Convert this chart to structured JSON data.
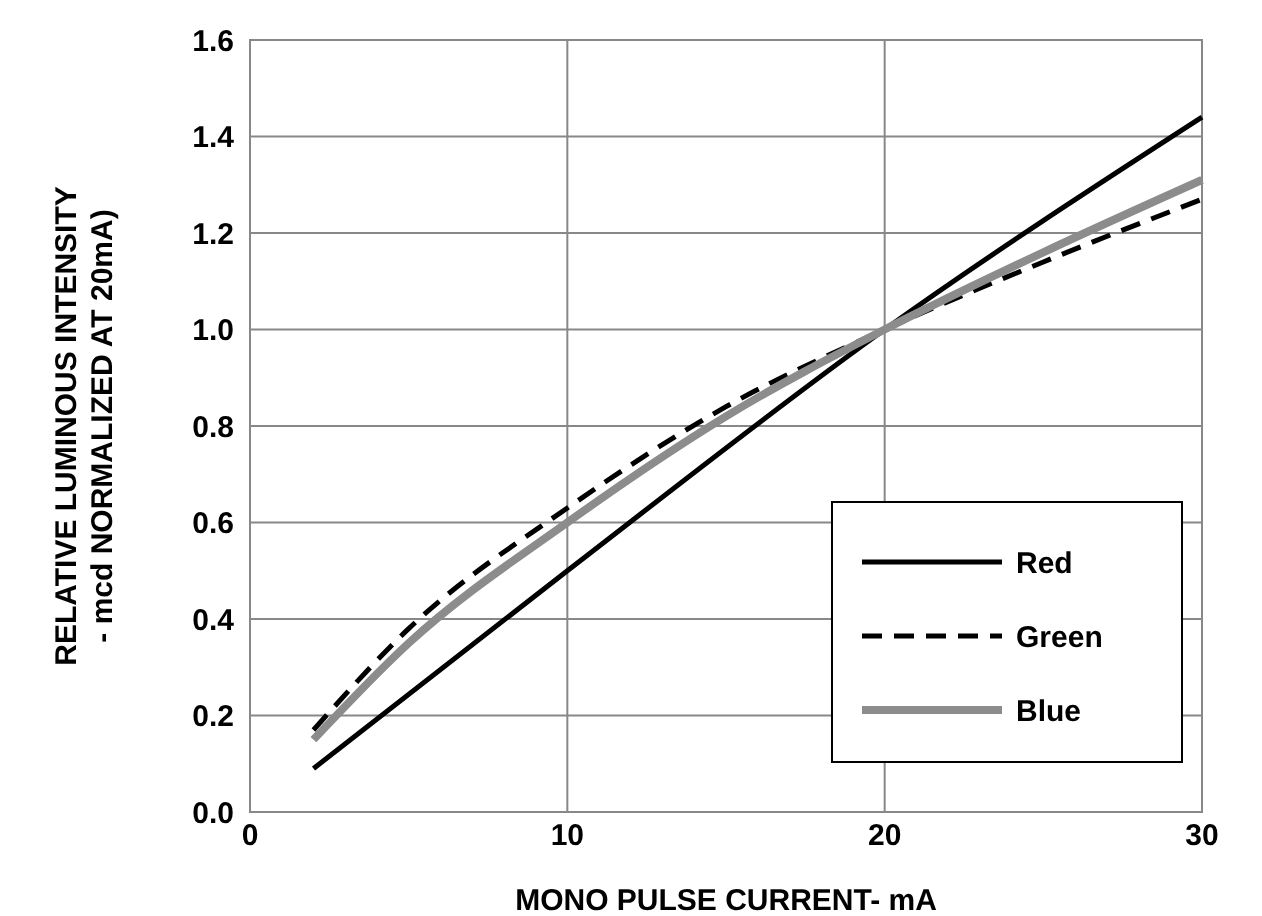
{
  "chart_data": {
    "type": "line",
    "xlabel": "MONO PULSE CURRENT- mA",
    "ylabel": "RELATIVE LUMINOUS INTENSITY\n- mcd  NORMALIZED AT 20mA)",
    "xlim": [
      0,
      30
    ],
    "xticks": [
      0,
      10,
      20,
      30
    ],
    "ylim": [
      0,
      1.6
    ],
    "yticks": [
      {
        "value": 0,
        "label": "0.0"
      },
      0.2,
      0.4,
      0.6,
      0.8,
      {
        "value": 1,
        "label": "1.0"
      },
      1.2,
      1.4,
      1.6
    ],
    "grid": true,
    "legend": "bottom right",
    "series": [
      {
        "name": "Red",
        "color": "#000000",
        "line_style": "solid",
        "x": [
          2,
          10,
          20,
          30
        ],
        "values": [
          0.09,
          0.5,
          1.0,
          1.44
        ]
      },
      {
        "name": "Green",
        "color": "#000000",
        "line_style": "dashed",
        "x": [
          2,
          5,
          10,
          15,
          20,
          25,
          30
        ],
        "values": [
          0.17,
          0.38,
          0.63,
          0.84,
          1.0,
          1.14,
          1.27
        ]
      },
      {
        "name": "Blue",
        "color": "#8c8c8c",
        "line_style": "solid",
        "x": [
          2,
          5,
          10,
          15,
          20,
          25,
          30
        ],
        "values": [
          0.15,
          0.35,
          0.6,
          0.82,
          1.0,
          1.16,
          1.31
        ]
      }
    ]
  }
}
